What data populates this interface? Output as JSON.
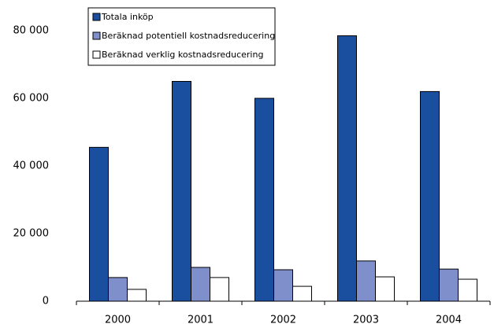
{
  "chart_data": {
    "type": "bar",
    "categories": [
      "2000",
      "2001",
      "2002",
      "2003",
      "2004"
    ],
    "series": [
      {
        "name": "Totala inköp",
        "color": "#1a4fa0",
        "values": [
          45500,
          65000,
          60000,
          78500,
          62000
        ]
      },
      {
        "name": "Beräknad potentiell kostnadsreducering",
        "color": "#7f8fcc",
        "values": [
          7000,
          10000,
          9300,
          11900,
          9500
        ]
      },
      {
        "name": "Beräknad verklig kostnadsreducering",
        "color": "#ffffff",
        "values": [
          3500,
          7000,
          4400,
          7200,
          6500
        ]
      }
    ],
    "ylim": [
      0,
      80000
    ],
    "yticks": [
      {
        "value": 0,
        "label": "0"
      },
      {
        "value": 20000,
        "label": "20 000"
      },
      {
        "value": 40000,
        "label": "40 000"
      },
      {
        "value": 60000,
        "label": "60 000"
      },
      {
        "value": 80000,
        "label": "80 000"
      }
    ],
    "legend": "top-left"
  }
}
